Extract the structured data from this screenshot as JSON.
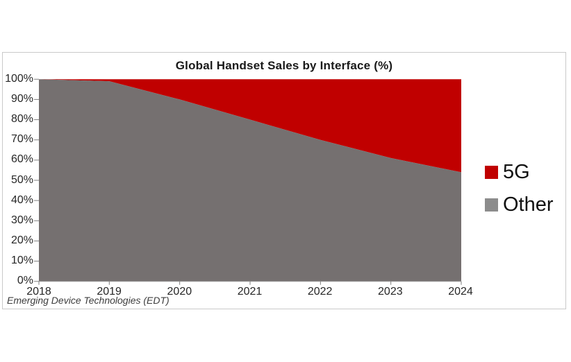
{
  "chart": {
    "title": "Global Handset Sales by Interface (%)",
    "footer": "Emerging Device Technologies (EDT)"
  },
  "legend": {
    "position": "right",
    "items": [
      {
        "label": "5G",
        "color": "#c00000"
      },
      {
        "label": "Other",
        "color": "#8c8c8c"
      }
    ]
  },
  "colors": {
    "area_5g": "#c00000",
    "area_other": "#757070",
    "axis_line": "#9b9b9b",
    "tick": "#7f7f7f",
    "frame_border": "#c9c9c9",
    "background": "#ffffff"
  },
  "chart_data": {
    "type": "area",
    "stacked": true,
    "title": "Global Handset Sales by Interface (%)",
    "categories": [
      "2018",
      "2019",
      "2020",
      "2021",
      "2022",
      "2023",
      "2024"
    ],
    "series": [
      {
        "name": "Other",
        "color": "#757070",
        "values": [
          100,
          99,
          90,
          80,
          70,
          61,
          54
        ]
      },
      {
        "name": "5G",
        "color": "#c00000",
        "values": [
          0,
          1,
          10,
          20,
          30,
          39,
          46
        ]
      }
    ],
    "xlabel": "",
    "ylabel": "",
    "ylim": [
      0,
      100
    ],
    "ytick_values": [
      0,
      10,
      20,
      30,
      40,
      50,
      60,
      70,
      80,
      90,
      100
    ],
    "ytick_labels": [
      "0%",
      "10%",
      "20%",
      "30%",
      "40%",
      "50%",
      "60%",
      "70%",
      "80%",
      "90%",
      "100%"
    ],
    "grid": false,
    "legend_position": "right",
    "source_note": "Emerging Device Technologies (EDT)"
  }
}
